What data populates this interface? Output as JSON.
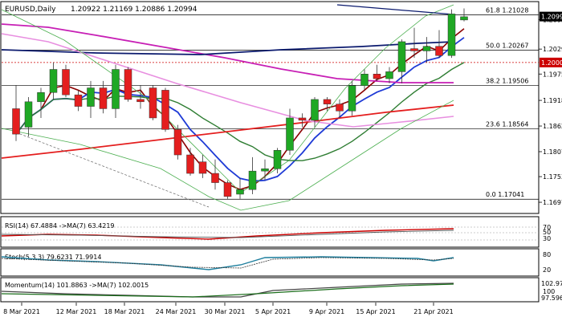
{
  "header": {
    "symbol": "EURUSD,Daily",
    "ohlc": "1.20922 1.21169 1.20886 1.20994"
  },
  "colors": {
    "bull": "#1fa824",
    "bear": "#e41e1e",
    "ema_red": "#e41e1e",
    "ma_darkred": "#8b0000",
    "ma_blue": "#1f3bd6",
    "ma_green": "#2e7d32",
    "ma_magenta": "#c71fb5",
    "ma_pink": "#e88fe0",
    "ma_navy": "#0b1a6e",
    "band": "#4caf50",
    "fib_line": "#000000",
    "level_red": "#cc0000",
    "rsi": "#cc0000",
    "rsi_ma": "#555555",
    "stoch": "#1e7f9e",
    "momentum": "#444444",
    "momentum_ma": "#1b6e1b"
  },
  "price_axis": {
    "ticks": [
      "1.20930",
      "1.20290",
      "1.19750",
      "1.19180",
      "1.18625",
      "1.18070",
      "1.17530",
      "1.16975"
    ],
    "current": "1.20994",
    "level_tag": "1.20000"
  },
  "fib_levels": [
    {
      "label": "61.8 1.21028",
      "value": 1.21028
    },
    {
      "label": "50.0 1.20267",
      "value": 1.20267
    },
    {
      "label": "38.2 1.19506",
      "value": 1.19506
    },
    {
      "label": "23.6 1.18564",
      "value": 1.18564
    },
    {
      "label": "0.0 1.17041",
      "value": 1.17041
    }
  ],
  "date_axis": [
    "8 Mar 2021",
    "12 Mar 2021",
    "18 Mar 2021",
    "24 Mar 2021",
    "30 Mar 2021",
    "5 Apr 2021",
    "9 Apr 2021",
    "15 Apr 2021",
    "21 Apr 2021"
  ],
  "chart_data": {
    "type": "candlestick",
    "title": "EURUSD,Daily",
    "ylim": [
      1.1675,
      1.213
    ],
    "candles": [
      {
        "o": 1.19,
        "h": 1.195,
        "l": 1.183,
        "c": 1.1845
      },
      {
        "o": 1.186,
        "h": 1.1925,
        "l": 1.184,
        "c": 1.1915
      },
      {
        "o": 1.1915,
        "h": 1.1945,
        "l": 1.188,
        "c": 1.1935
      },
      {
        "o": 1.1935,
        "h": 1.2,
        "l": 1.192,
        "c": 1.1985
      },
      {
        "o": 1.1985,
        "h": 1.1995,
        "l": 1.1925,
        "c": 1.193
      },
      {
        "o": 1.193,
        "h": 1.194,
        "l": 1.1895,
        "c": 1.1905
      },
      {
        "o": 1.1905,
        "h": 1.196,
        "l": 1.188,
        "c": 1.1945
      },
      {
        "o": 1.1945,
        "h": 1.196,
        "l": 1.189,
        "c": 1.19
      },
      {
        "o": 1.19,
        "h": 1.1995,
        "l": 1.188,
        "c": 1.1985
      },
      {
        "o": 1.1985,
        "h": 1.199,
        "l": 1.1915,
        "c": 1.192
      },
      {
        "o": 1.192,
        "h": 1.195,
        "l": 1.19,
        "c": 1.1915
      },
      {
        "o": 1.1945,
        "h": 1.195,
        "l": 1.1875,
        "c": 1.188
      },
      {
        "o": 1.194,
        "h": 1.1945,
        "l": 1.185,
        "c": 1.1855
      },
      {
        "o": 1.1855,
        "h": 1.1865,
        "l": 1.179,
        "c": 1.18
      },
      {
        "o": 1.18,
        "h": 1.1815,
        "l": 1.1755,
        "c": 1.176
      },
      {
        "o": 1.1785,
        "h": 1.18,
        "l": 1.175,
        "c": 1.176
      },
      {
        "o": 1.176,
        "h": 1.179,
        "l": 1.1725,
        "c": 1.174
      },
      {
        "o": 1.174,
        "h": 1.1745,
        "l": 1.1705,
        "c": 1.171
      },
      {
        "o": 1.1715,
        "h": 1.175,
        "l": 1.1705,
        "c": 1.1725
      },
      {
        "o": 1.1725,
        "h": 1.1795,
        "l": 1.1715,
        "c": 1.1765
      },
      {
        "o": 1.1765,
        "h": 1.179,
        "l": 1.1745,
        "c": 1.177
      },
      {
        "o": 1.177,
        "h": 1.1815,
        "l": 1.176,
        "c": 1.181
      },
      {
        "o": 1.181,
        "h": 1.19,
        "l": 1.18,
        "c": 1.188
      },
      {
        "o": 1.188,
        "h": 1.189,
        "l": 1.186,
        "c": 1.1875
      },
      {
        "o": 1.1875,
        "h": 1.1925,
        "l": 1.186,
        "c": 1.192
      },
      {
        "o": 1.192,
        "h": 1.1925,
        "l": 1.1895,
        "c": 1.191
      },
      {
        "o": 1.191,
        "h": 1.192,
        "l": 1.188,
        "c": 1.1895
      },
      {
        "o": 1.1895,
        "h": 1.196,
        "l": 1.1885,
        "c": 1.195
      },
      {
        "o": 1.195,
        "h": 1.1985,
        "l": 1.194,
        "c": 1.1975
      },
      {
        "o": 1.1975,
        "h": 1.1995,
        "l": 1.196,
        "c": 1.1965
      },
      {
        "o": 1.1965,
        "h": 1.199,
        "l": 1.1955,
        "c": 1.198
      },
      {
        "o": 1.198,
        "h": 1.205,
        "l": 1.1955,
        "c": 1.2045
      },
      {
        "o": 1.203,
        "h": 1.2075,
        "l": 1.201,
        "c": 1.2025
      },
      {
        "o": 1.2025,
        "h": 1.2055,
        "l": 1.2,
        "c": 1.2035
      },
      {
        "o": 1.2035,
        "h": 1.207,
        "l": 1.201,
        "c": 1.2015
      },
      {
        "o": 1.2015,
        "h": 1.2115,
        "l": 1.201,
        "c": 1.2105
      },
      {
        "o": 1.2092,
        "h": 1.2117,
        "l": 1.2089,
        "c": 1.2099
      }
    ]
  },
  "indicators": {
    "rsi": {
      "label": "RSI(14) 67.4884  ->MA(7) 63.4219",
      "levels": [
        "70",
        "50",
        "30"
      ]
    },
    "stoch": {
      "label": "Stoch(5,3,3) 79.6231 71.9914",
      "levels": [
        "80",
        "20"
      ]
    },
    "momentum": {
      "label": "Momentum(14) 101.8863  ->MA(7) 102.0015",
      "levels": [
        "102.9757",
        "100",
        "97.5966"
      ]
    }
  }
}
